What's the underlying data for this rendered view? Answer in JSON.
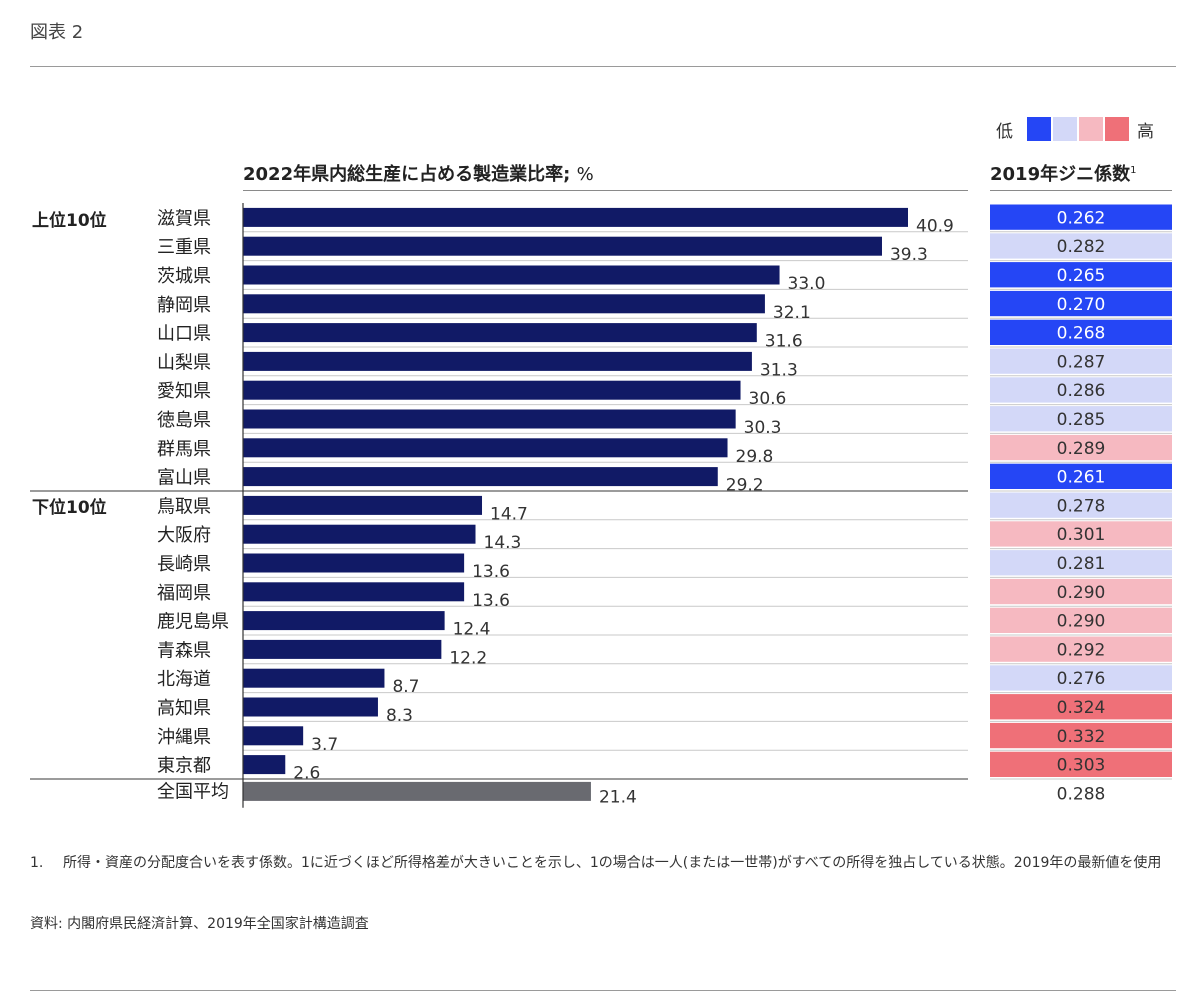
{
  "figure_label": "図表 2",
  "legend": {
    "low_label": "低",
    "high_label": "高",
    "swatch_colors": [
      "#2546f5",
      "#d3d8f8",
      "#f6b9c1",
      "#ef7078"
    ]
  },
  "chart_title": "2022年県内総生産に占める製造業比率;",
  "chart_unit": "%",
  "gini_title": "2019年ジニ係数",
  "gini_note_marker": "1",
  "colors": {
    "bar": "#111a66",
    "average_bar": "#696a70",
    "gini_low_dark": "#2546f5",
    "gini_low_light": "#d3d8f8",
    "gini_high_light": "#f6b9c1",
    "gini_high_dark": "#ef7078"
  },
  "chart_data": {
    "type": "bar",
    "orientation": "horizontal",
    "title": "2022年県内総生産に占める製造業比率; %",
    "groups": [
      {
        "label": "上位10位",
        "categories": [
          "滋賀県",
          "三重県",
          "茨城県",
          "静岡県",
          "山口県",
          "山梨県",
          "愛知県",
          "徳島県",
          "群馬県",
          "富山県"
        ]
      },
      {
        "label": "下位10位",
        "categories": [
          "鳥取県",
          "大阪府",
          "長崎県",
          "福岡県",
          "鹿児島県",
          "青森県",
          "北海道",
          "高知県",
          "沖縄県",
          "東京都"
        ]
      }
    ],
    "categories": [
      "滋賀県",
      "三重県",
      "茨城県",
      "静岡県",
      "山口県",
      "山梨県",
      "愛知県",
      "徳島県",
      "群馬県",
      "富山県",
      "鳥取県",
      "大阪府",
      "長崎県",
      "福岡県",
      "鹿児島県",
      "青森県",
      "北海道",
      "高知県",
      "沖縄県",
      "東京都"
    ],
    "values": [
      40.9,
      39.3,
      33.0,
      32.1,
      31.6,
      31.3,
      30.6,
      30.3,
      29.8,
      29.2,
      14.7,
      14.3,
      13.6,
      13.6,
      12.4,
      12.2,
      8.7,
      8.3,
      3.7,
      2.6
    ],
    "value_labels": [
      "40.9",
      "39.3",
      "33.0",
      "32.1",
      "31.6",
      "31.3",
      "30.6",
      "30.3",
      "29.8",
      "29.2",
      "14.7",
      "14.3",
      "13.6",
      "13.6",
      "12.4",
      "12.2",
      "8.7",
      "8.3",
      "3.7",
      "2.6"
    ],
    "gini": [
      "0.262",
      "0.282",
      "0.265",
      "0.270",
      "0.268",
      "0.287",
      "0.286",
      "0.285",
      "0.289",
      "0.261",
      "0.278",
      "0.301",
      "0.281",
      "0.290",
      "0.290",
      "0.292",
      "0.276",
      "0.324",
      "0.332",
      "0.303"
    ],
    "gini_level": [
      "low_dark",
      "low_light",
      "low_dark",
      "low_dark",
      "low_dark",
      "low_light",
      "low_light",
      "low_light",
      "high_light",
      "low_dark",
      "low_light",
      "high_light",
      "low_light",
      "high_light",
      "high_light",
      "high_light",
      "low_light",
      "high_dark",
      "high_dark",
      "high_dark"
    ],
    "average": {
      "label": "全国平均",
      "value": 21.4,
      "value_label": "21.4",
      "gini": "0.288"
    },
    "xlim": [
      0,
      40.9
    ],
    "grid": false
  },
  "footnote": {
    "number": "1.",
    "text": "所得・資産の分配度合いを表す係数。1に近づくほど所得格差が大きいことを示し、1の場合は一人(または一世帯)がすべての所得を独占している状態。2019年の最新値を使用"
  },
  "source": "資料: 内閣府県民経済計算、2019年全国家計構造調査"
}
